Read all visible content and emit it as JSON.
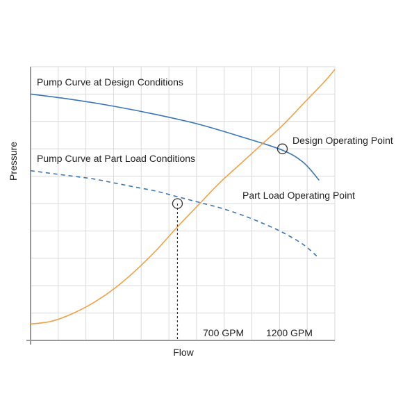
{
  "chart_data": {
    "type": "line",
    "title": "",
    "xlabel": "Flow",
    "ylabel": "Pressure",
    "grid": true,
    "x_tick_labels": [
      {
        "label": "700 GPM",
        "value": 700
      },
      {
        "label": "1200 GPM",
        "value": 1200
      }
    ],
    "series": [
      {
        "name": "Pump Curve at Design Conditions",
        "color": "#3a73b8",
        "style": "solid",
        "x": [
          0,
          200,
          400,
          600,
          800,
          1000,
          1200,
          1300,
          1375
        ],
        "y": [
          9.0,
          8.8,
          8.55,
          8.25,
          7.9,
          7.45,
          6.95,
          6.5,
          5.85
        ]
      },
      {
        "name": "Pump Curve at Part Load Conditions",
        "color": "#3a73b8",
        "style": "dashed",
        "x": [
          0,
          100,
          200,
          300,
          400,
          500,
          600,
          700,
          800,
          900,
          1000,
          1100,
          1200,
          1300,
          1375
        ],
        "y": [
          6.2,
          6.1,
          6.0,
          5.9,
          5.75,
          5.6,
          5.45,
          5.25,
          5.05,
          4.85,
          4.6,
          4.3,
          3.95,
          3.5,
          3.0
        ]
      },
      {
        "name": "",
        "color": "#f2a045",
        "style": "solid",
        "x": [
          0,
          100,
          200,
          300,
          400,
          500,
          600,
          700,
          800,
          900,
          1000,
          1100,
          1200,
          1300,
          1400,
          1450
        ],
        "y": [
          0.6,
          0.7,
          0.98,
          1.38,
          1.9,
          2.55,
          3.3,
          4.15,
          4.95,
          5.75,
          6.45,
          7.15,
          7.85,
          8.65,
          9.45,
          9.9
        ]
      }
    ],
    "annotations": [
      {
        "text": "Design Operating Point",
        "x": 1200,
        "y": 7.0
      },
      {
        "text": "Part Load Operating Point",
        "x": 700,
        "y": 5.0
      }
    ]
  }
}
